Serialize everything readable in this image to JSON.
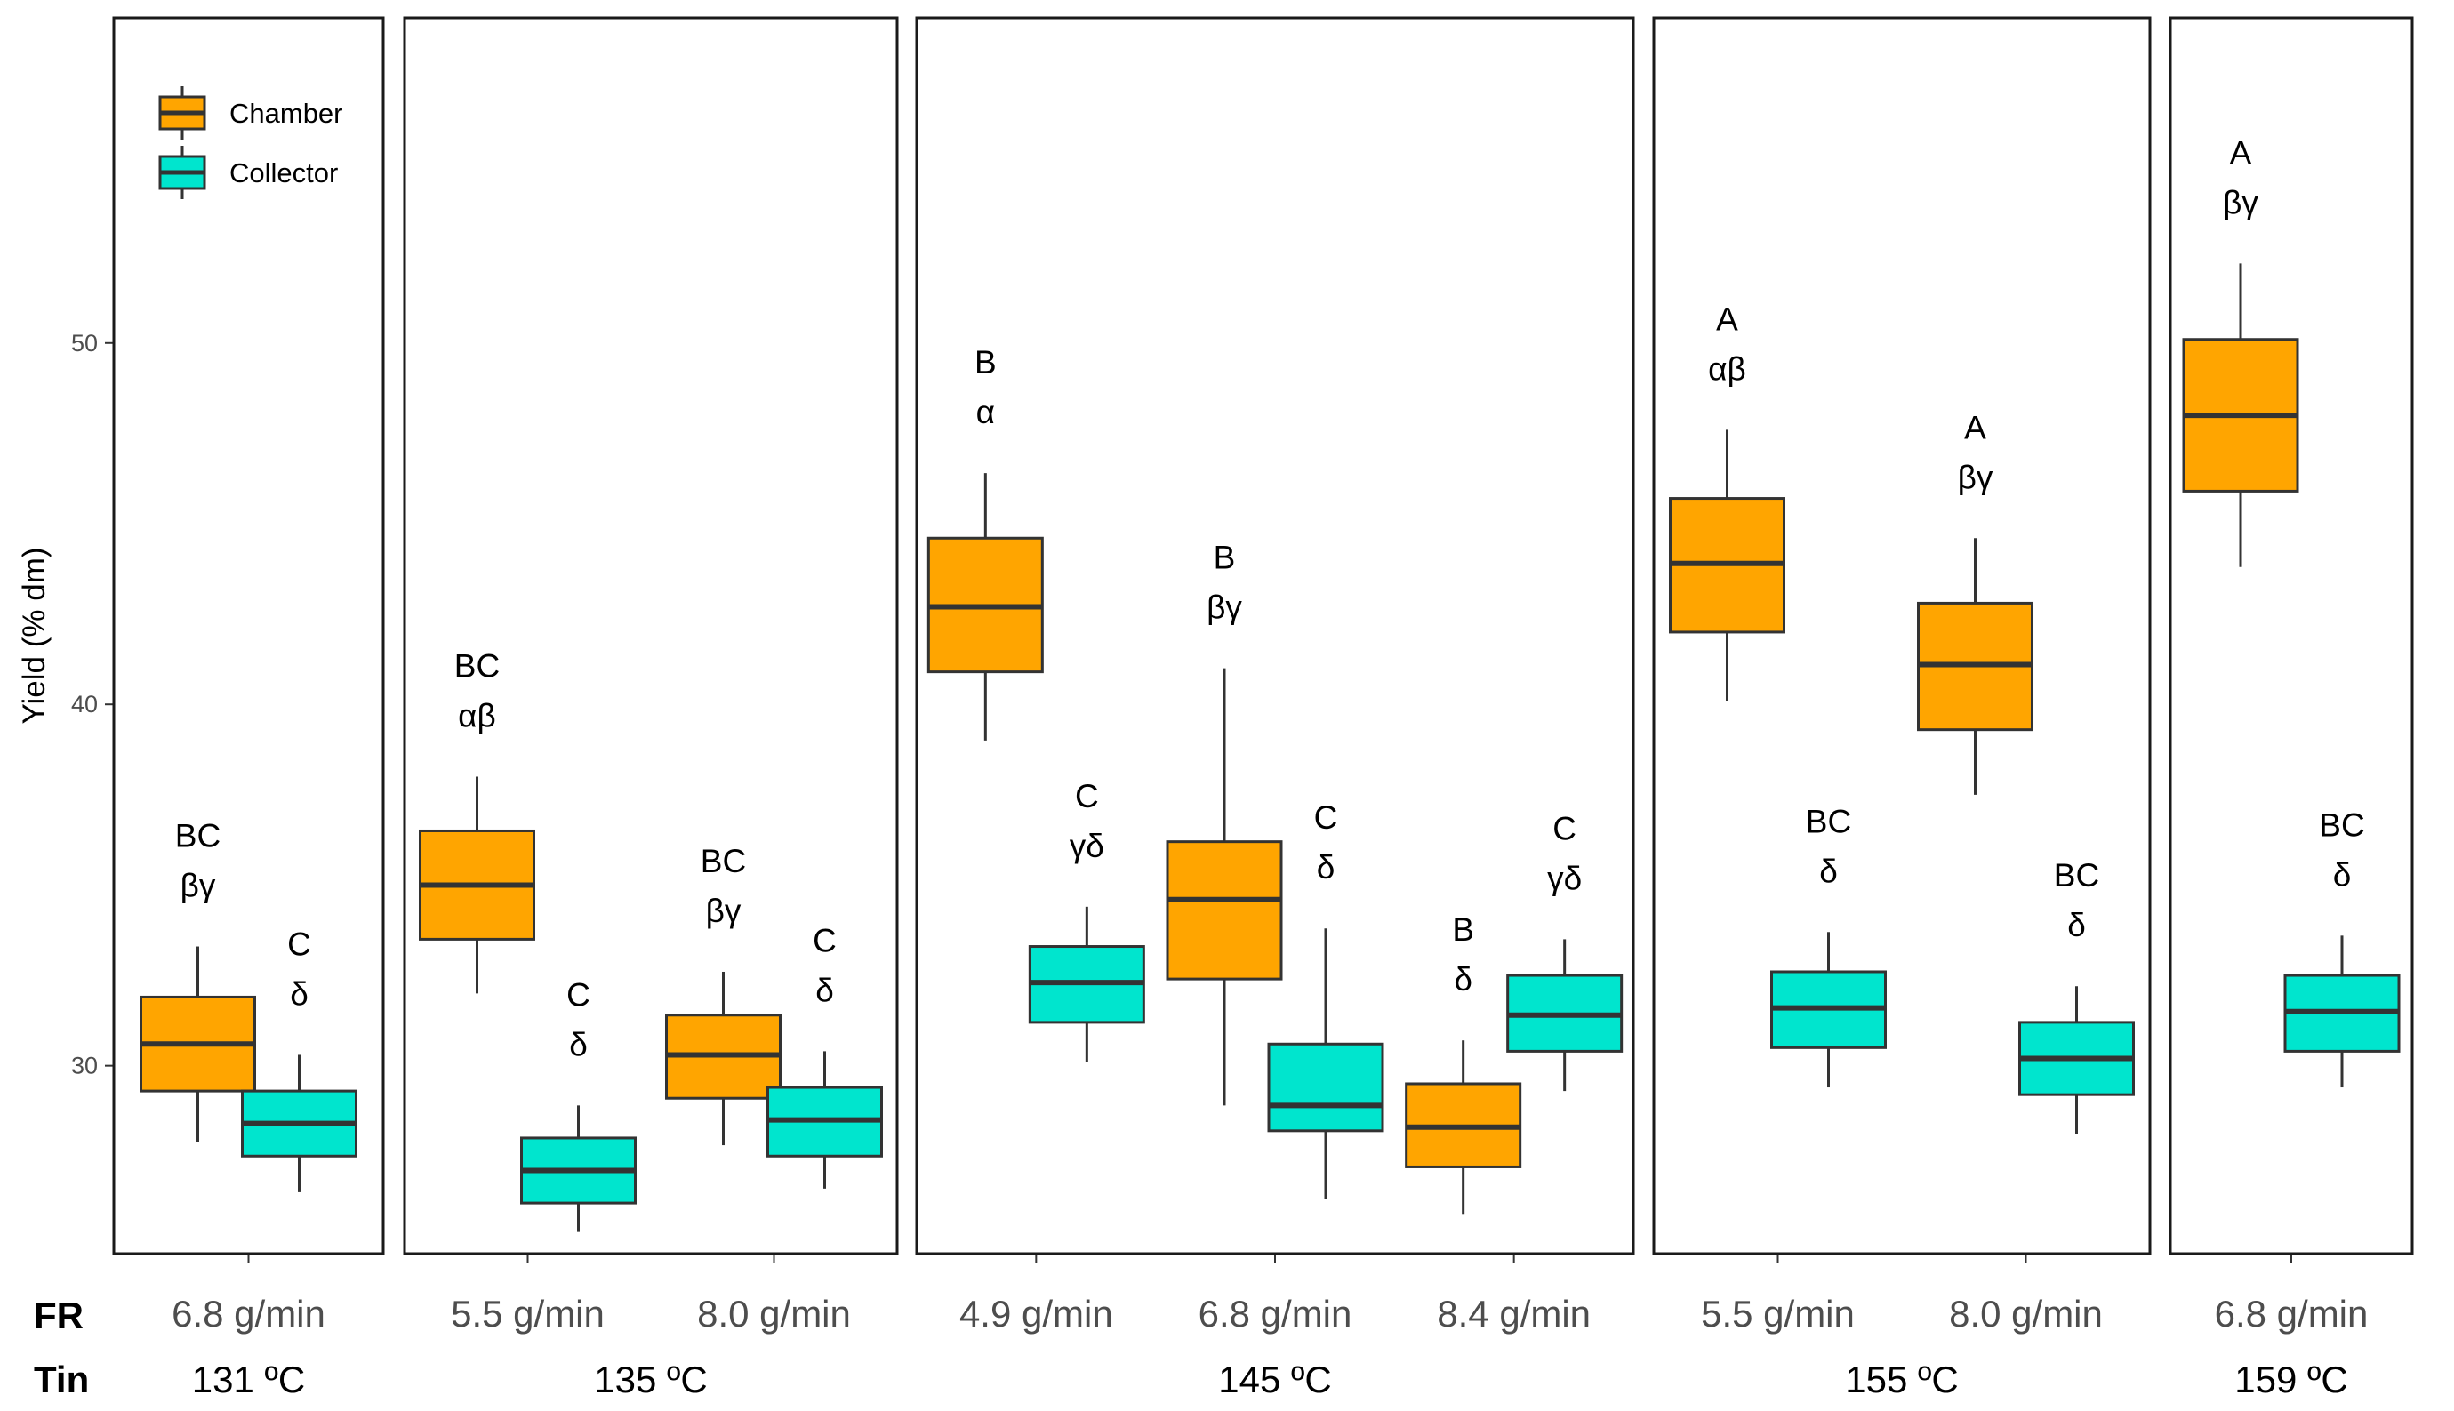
{
  "chart_data": {
    "type": "boxplot",
    "ylabel": "Yield (% dm)",
    "yticks": [
      30,
      40,
      50
    ],
    "ylim": [
      24.8,
      59
    ],
    "row_labels": {
      "fr": "FR",
      "tin": "Tin"
    },
    "legend": {
      "placement": "top-left",
      "entries": [
        {
          "name": "Chamber",
          "color": "#FFA500"
        },
        {
          "name": "Collector",
          "color": "#00E5CE"
        }
      ]
    },
    "panels": [
      {
        "tin": "131 ºC",
        "groups": [
          {
            "fr": "6.8 g/min",
            "chamber": {
              "min": 27.9,
              "q1": 29.3,
              "median": 30.6,
              "q3": 31.9,
              "max": 33.3,
              "letters": [
                "BC",
                "βγ"
              ]
            },
            "collector": {
              "min": 26.5,
              "q1": 27.5,
              "median": 28.4,
              "q3": 29.3,
              "max": 30.3,
              "letters": [
                "C",
                "δ"
              ]
            }
          }
        ]
      },
      {
        "tin": "135 ºC",
        "groups": [
          {
            "fr": "5.5 g/min",
            "chamber": {
              "min": 32.0,
              "q1": 33.5,
              "median": 35.0,
              "q3": 36.5,
              "max": 38.0,
              "letters": [
                "BC",
                "αβ"
              ]
            },
            "collector": {
              "min": 25.4,
              "q1": 26.2,
              "median": 27.1,
              "q3": 28.0,
              "max": 28.9,
              "letters": [
                "C",
                "δ"
              ]
            }
          },
          {
            "fr": "8.0 g/min",
            "chamber": {
              "min": 27.8,
              "q1": 29.1,
              "median": 30.3,
              "q3": 31.4,
              "max": 32.6,
              "letters": [
                "BC",
                "βγ"
              ]
            },
            "collector": {
              "min": 26.6,
              "q1": 27.5,
              "median": 28.5,
              "q3": 29.4,
              "max": 30.4,
              "letters": [
                "C",
                "δ"
              ]
            }
          }
        ]
      },
      {
        "tin": "145 ºC",
        "groups": [
          {
            "fr": "4.9 g/min",
            "chamber": {
              "min": 39.0,
              "q1": 40.9,
              "median": 42.7,
              "q3": 44.6,
              "max": 46.4,
              "letters": [
                "B",
                "α"
              ]
            },
            "collector": {
              "min": 30.1,
              "q1": 31.2,
              "median": 32.3,
              "q3": 33.3,
              "max": 34.4,
              "letters": [
                "C",
                "γδ"
              ]
            }
          },
          {
            "fr": "6.8 g/min",
            "chamber": {
              "min": 28.9,
              "q1": 32.4,
              "median": 34.6,
              "q3": 36.2,
              "max": 41.0,
              "letters": [
                "B",
                "βγ"
              ]
            },
            "collector": {
              "min": 26.3,
              "q1": 28.2,
              "median": 28.9,
              "q3": 30.6,
              "max": 33.8,
              "letters": [
                "C",
                "δ"
              ]
            }
          },
          {
            "fr": "8.4 g/min",
            "chamber": {
              "min": 25.9,
              "q1": 27.2,
              "median": 28.3,
              "q3": 29.5,
              "max": 30.7,
              "letters": [
                "B",
                "δ"
              ]
            },
            "collector": {
              "min": 29.3,
              "q1": 30.4,
              "median": 31.4,
              "q3": 32.5,
              "max": 33.5,
              "letters": [
                "C",
                "γδ"
              ]
            }
          }
        ]
      },
      {
        "tin": "155 ºC",
        "groups": [
          {
            "fr": "5.5 g/min",
            "chamber": {
              "min": 40.1,
              "q1": 42.0,
              "median": 43.9,
              "q3": 45.7,
              "max": 47.6,
              "letters": [
                "A",
                "αβ"
              ]
            },
            "collector": {
              "min": 29.4,
              "q1": 30.5,
              "median": 31.6,
              "q3": 32.6,
              "max": 33.7,
              "letters": [
                "BC",
                "δ"
              ]
            }
          },
          {
            "fr": "8.0 g/min",
            "chamber": {
              "min": 37.5,
              "q1": 39.3,
              "median": 41.1,
              "q3": 42.8,
              "max": 44.6,
              "letters": [
                "A",
                "βγ"
              ]
            },
            "collector": {
              "min": 28.1,
              "q1": 29.2,
              "median": 30.2,
              "q3": 31.2,
              "max": 32.2,
              "letters": [
                "BC",
                "δ"
              ]
            }
          }
        ]
      },
      {
        "tin": "159 ºC",
        "groups": [
          {
            "fr": "6.8 g/min",
            "chamber": {
              "min": 43.8,
              "q1": 45.9,
              "median": 48.0,
              "q3": 50.1,
              "max": 52.2,
              "letters": [
                "A",
                "βγ"
              ]
            },
            "collector": {
              "min": 29.4,
              "q1": 30.4,
              "median": 31.5,
              "q3": 32.5,
              "max": 33.6,
              "letters": [
                "BC",
                "δ"
              ]
            }
          }
        ]
      }
    ]
  }
}
